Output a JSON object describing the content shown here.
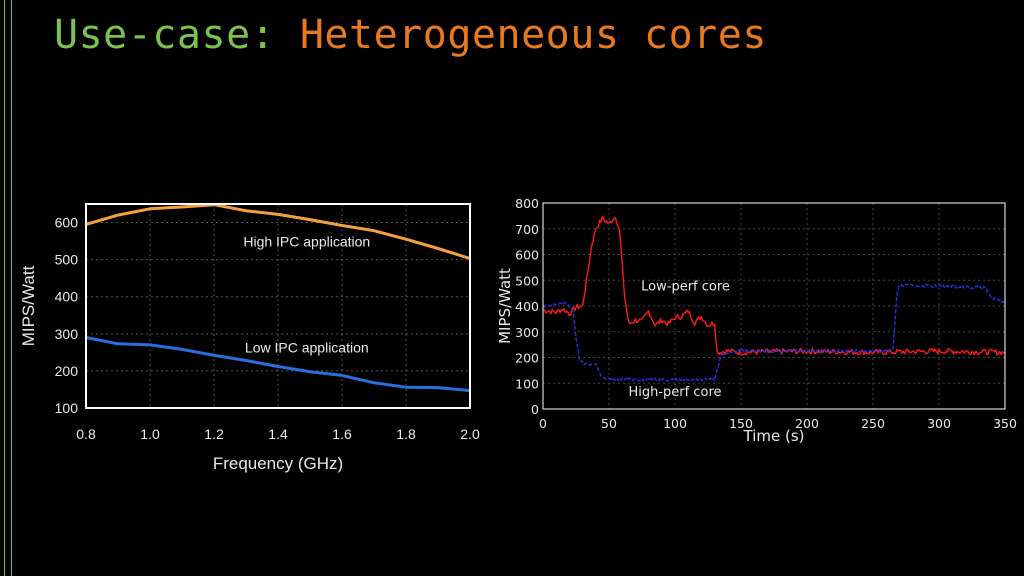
{
  "slide": {
    "title_part1": "Use-case:",
    "title_part2": "Heterogeneous cores",
    "title_color_1": "#7cc24e",
    "title_color_2": "#e8791f"
  },
  "chart_data": [
    {
      "type": "line",
      "xlabel": "Frequency (GHz)",
      "ylabel": "MIPS/Watt",
      "xlim": [
        0.8,
        2.0
      ],
      "ylim": [
        100,
        650
      ],
      "xticks": [
        0.8,
        1.0,
        1.2,
        1.4,
        1.6,
        1.8,
        2.0
      ],
      "xtick_labels": [
        "0.8",
        "1.0",
        "1.2",
        "1.4",
        "1.6",
        "1.8",
        "2.0"
      ],
      "yticks": [
        100,
        200,
        300,
        400,
        500,
        600
      ],
      "grid": true,
      "series": [
        {
          "name": "High IPC application",
          "color": "#f4a040",
          "x": [
            0.8,
            0.9,
            1.0,
            1.1,
            1.2,
            1.3,
            1.4,
            1.5,
            1.6,
            1.7,
            1.8,
            1.9,
            2.0
          ],
          "y": [
            595,
            620,
            637,
            642,
            648,
            632,
            622,
            608,
            592,
            578,
            555,
            530,
            503
          ]
        },
        {
          "name": "Low IPC application",
          "color": "#2a6fe0",
          "x": [
            0.8,
            0.9,
            1.0,
            1.1,
            1.2,
            1.3,
            1.4,
            1.5,
            1.6,
            1.7,
            1.8,
            1.9,
            2.0
          ],
          "y": [
            290,
            273,
            270,
            258,
            242,
            228,
            212,
            198,
            188,
            168,
            156,
            155,
            147
          ]
        }
      ]
    },
    {
      "type": "line",
      "xlabel": "Time (s)",
      "ylabel": "MIPS/Watt",
      "xlim": [
        0,
        350
      ],
      "ylim": [
        0,
        800
      ],
      "xticks": [
        0,
        50,
        100,
        150,
        200,
        250,
        300,
        350
      ],
      "yticks": [
        0,
        100,
        200,
        300,
        400,
        500,
        600,
        700,
        800
      ],
      "grid": true,
      "series": [
        {
          "name": "Low-perf core",
          "color": "#ff1a1a",
          "style": "solid",
          "x": [
            0,
            10,
            15,
            20,
            25,
            30,
            33,
            37,
            40,
            45,
            50,
            55,
            58,
            62,
            65,
            70,
            75,
            80,
            85,
            90,
            95,
            100,
            105,
            110,
            115,
            120,
            125,
            130,
            132,
            140,
            150,
            200,
            250,
            300,
            350
          ],
          "y": [
            385,
            375,
            390,
            370,
            395,
            400,
            500,
            640,
            700,
            740,
            720,
            750,
            690,
            430,
            330,
            345,
            340,
            380,
            325,
            345,
            330,
            355,
            360,
            380,
            335,
            360,
            325,
            335,
            220,
            225,
            220,
            225,
            220,
            225,
            220
          ]
        },
        {
          "name": "High-perf core",
          "color": "#2233ee",
          "style": "dashed",
          "x": [
            0,
            10,
            15,
            20,
            23,
            25,
            28,
            30,
            40,
            45,
            50,
            100,
            130,
            135,
            140,
            150,
            200,
            250,
            265,
            268,
            270,
            300,
            335,
            340,
            350
          ],
          "y": [
            395,
            405,
            415,
            400,
            380,
            270,
            190,
            175,
            175,
            120,
            115,
            115,
            115,
            210,
            220,
            225,
            225,
            225,
            225,
            440,
            480,
            478,
            470,
            430,
            410
          ]
        }
      ]
    }
  ]
}
